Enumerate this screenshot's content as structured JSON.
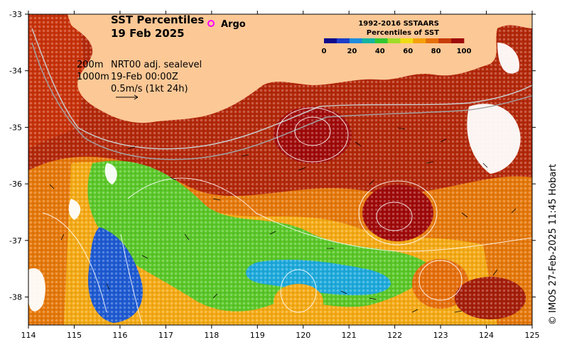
{
  "title": {
    "line1": "SST Percentiles",
    "line2": "19 Feb 2025"
  },
  "argo_label": "Argo",
  "legend": {
    "depth_200": "200m",
    "depth_1000": "1000m",
    "sealevel": "NRT00 adj. sealevel",
    "time": "19-Feb 00:00Z",
    "arrow_scale": "0.5m/s (1kt 24h)"
  },
  "colorbar": {
    "title_line1": "1992-2016 SSTAARS",
    "title_line2": "Percentiles of SST",
    "tick_labels": [
      "0",
      "20",
      "40",
      "60",
      "80",
      "100"
    ],
    "colors": [
      "#0a0a8c",
      "#1e3cc8",
      "#1e8cdc",
      "#14b4a0",
      "#32c832",
      "#a0dc28",
      "#f0dc14",
      "#f5a00a",
      "#e66e0a",
      "#c83c0a",
      "#a00a0a"
    ]
  },
  "axes": {
    "x_labels": [
      "114",
      "115",
      "116",
      "117",
      "118",
      "119",
      "120",
      "121",
      "122",
      "123",
      "124",
      "125"
    ],
    "y_labels": [
      "-33",
      "-34",
      "-35",
      "-36",
      "-37",
      "-38"
    ]
  },
  "credit": "© IMOS 27-Feb-2025 11:45 Hobart",
  "colors": {
    "land": "#fcc896",
    "hot": "#a51e0a",
    "warm": "#e1640a",
    "mid": "#f5a00a",
    "cool": "#32c832",
    "cold": "#1e3cc8"
  }
}
